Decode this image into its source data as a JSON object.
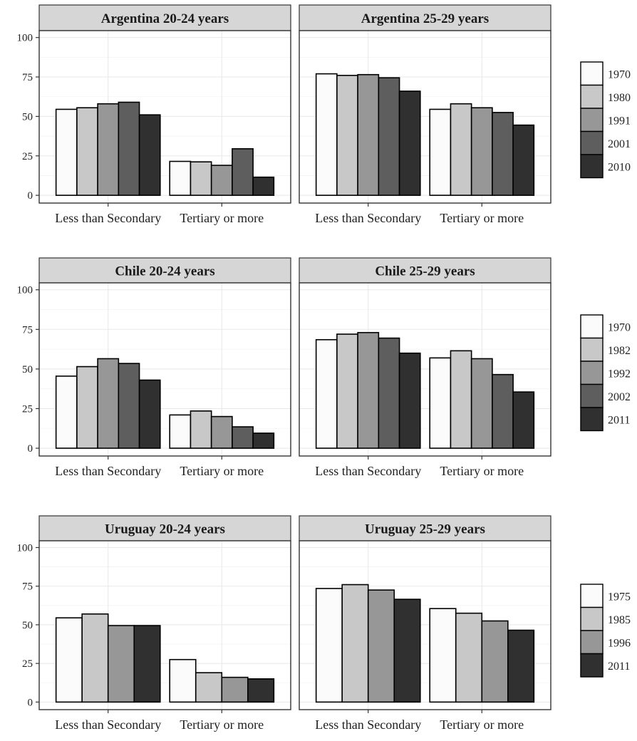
{
  "chart_data": [
    {
      "type": "bar",
      "title": "Argentina 20-24 years",
      "categories": [
        "Less than Secondary",
        "Tertiary or more"
      ],
      "series": [
        {
          "name": "1970",
          "values": [
            54.5,
            21.5
          ]
        },
        {
          "name": "1980",
          "values": [
            55.5,
            21.2
          ]
        },
        {
          "name": "1991",
          "values": [
            58.0,
            19.0
          ]
        },
        {
          "name": "2001",
          "values": [
            59.0,
            29.5
          ]
        },
        {
          "name": "2010",
          "values": [
            51.0,
            11.5
          ]
        }
      ],
      "ylim": [
        0,
        100
      ],
      "yticks": [
        "0",
        "25",
        "50",
        "75",
        "100"
      ],
      "grid": true
    },
    {
      "type": "bar",
      "title": "Argentina 25-29 years",
      "categories": [
        "Less than Secondary",
        "Tertiary or more"
      ],
      "series": [
        {
          "name": "1970",
          "values": [
            77.0,
            54.5
          ]
        },
        {
          "name": "1980",
          "values": [
            76.0,
            58.0
          ]
        },
        {
          "name": "1991",
          "values": [
            76.5,
            55.5
          ]
        },
        {
          "name": "2001",
          "values": [
            74.5,
            52.5
          ]
        },
        {
          "name": "2010",
          "values": [
            66.0,
            44.5
          ]
        }
      ],
      "ylim": [
        0,
        100
      ],
      "grid": true
    },
    {
      "type": "bar",
      "title": "Chile 20-24 years",
      "categories": [
        "Less than Secondary",
        "Tertiary or more"
      ],
      "series": [
        {
          "name": "1970",
          "values": [
            45.5,
            21.0
          ]
        },
        {
          "name": "1982",
          "values": [
            51.5,
            23.5
          ]
        },
        {
          "name": "1992",
          "values": [
            56.5,
            20.0
          ]
        },
        {
          "name": "2002",
          "values": [
            53.5,
            13.5
          ]
        },
        {
          "name": "2011",
          "values": [
            43.0,
            9.5
          ]
        }
      ],
      "ylim": [
        0,
        100
      ],
      "yticks": [
        "0",
        "25",
        "50",
        "75",
        "100"
      ],
      "grid": true
    },
    {
      "type": "bar",
      "title": "Chile 25-29 years",
      "categories": [
        "Less than Secondary",
        "Tertiary or more"
      ],
      "series": [
        {
          "name": "1970",
          "values": [
            68.5,
            57.0
          ]
        },
        {
          "name": "1982",
          "values": [
            72.0,
            61.5
          ]
        },
        {
          "name": "1992",
          "values": [
            73.0,
            56.5
          ]
        },
        {
          "name": "2002",
          "values": [
            69.5,
            46.5
          ]
        },
        {
          "name": "2011",
          "values": [
            60.0,
            35.5
          ]
        }
      ],
      "ylim": [
        0,
        100
      ],
      "grid": true
    },
    {
      "type": "bar",
      "title": "Uruguay 20-24 years",
      "categories": [
        "Less than Secondary",
        "Tertiary or more"
      ],
      "series": [
        {
          "name": "1975",
          "values": [
            54.5,
            27.5
          ]
        },
        {
          "name": "1985",
          "values": [
            57.0,
            19.0
          ]
        },
        {
          "name": "1996",
          "values": [
            49.5,
            16.0
          ]
        },
        {
          "name": "2011",
          "values": [
            49.5,
            15.0
          ]
        }
      ],
      "ylim": [
        0,
        100
      ],
      "yticks": [
        "0",
        "25",
        "50",
        "75",
        "100"
      ],
      "grid": true
    },
    {
      "type": "bar",
      "title": "Uruguay 25-29 years",
      "categories": [
        "Less than Secondary",
        "Tertiary or more"
      ],
      "series": [
        {
          "name": "1975",
          "values": [
            73.5,
            60.5
          ]
        },
        {
          "name": "1985",
          "values": [
            76.0,
            57.5
          ]
        },
        {
          "name": "1996",
          "values": [
            72.5,
            52.5
          ]
        },
        {
          "name": "2011",
          "values": [
            66.5,
            46.5
          ]
        }
      ],
      "ylim": [
        0,
        100
      ],
      "grid": true
    }
  ],
  "legends": [
    {
      "items": [
        "1970",
        "1980",
        "1991",
        "2001",
        "2010"
      ],
      "colors": [
        "#fbfbfb",
        "#c8c8c8",
        "#979797",
        "#5e5e5e",
        "#303030"
      ]
    },
    {
      "items": [
        "1970",
        "1982",
        "1992",
        "2002",
        "2011"
      ],
      "colors": [
        "#fbfbfb",
        "#c8c8c8",
        "#979797",
        "#5e5e5e",
        "#303030"
      ]
    },
    {
      "items": [
        "1975",
        "1985",
        "1996",
        "2011"
      ],
      "colors": [
        "#fbfbfb",
        "#c8c8c8",
        "#979797",
        "#303030"
      ]
    }
  ],
  "colors": {
    "five_series": [
      "#fbfbfb",
      "#c8c8c8",
      "#979797",
      "#5e5e5e",
      "#303030"
    ],
    "four_series": [
      "#fbfbfb",
      "#c8c8c8",
      "#979797",
      "#303030"
    ],
    "strip_fill": "#d6d6d6",
    "gridline": "#e8e8e8",
    "bar_outline": "#000000"
  }
}
